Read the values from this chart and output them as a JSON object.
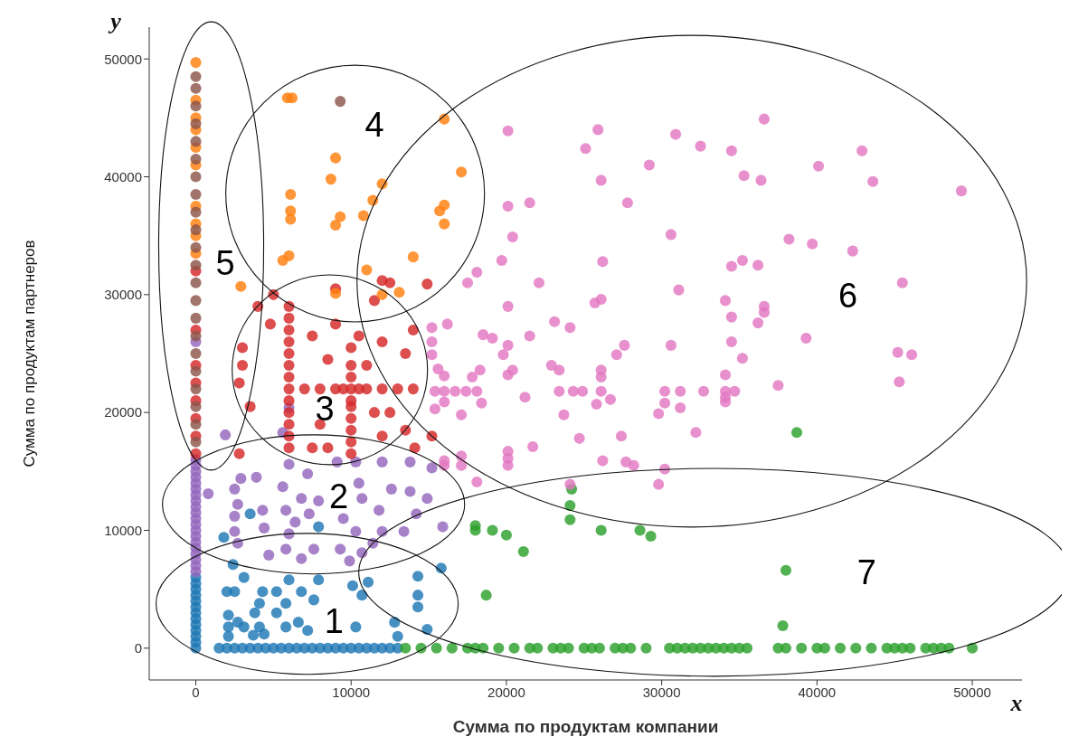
{
  "chart_data": {
    "type": "scatter",
    "xlabel": "Сумма по продуктам компании",
    "ylabel": "Сумма по продуктам партнеров",
    "xlim": [
      -3000,
      53200
    ],
    "ylim": [
      -2700,
      52700
    ],
    "xticks": [
      0,
      10000,
      20000,
      30000,
      40000,
      50000
    ],
    "yticks": [
      0,
      10000,
      20000,
      30000,
      40000,
      50000
    ],
    "marker": "circle",
    "annotations": [
      "y",
      "x",
      "1",
      "2",
      "3",
      "4",
      "5",
      "6",
      "7"
    ],
    "series": [
      {
        "color": "#1f77b4",
        "x": [
          0,
          0,
          0,
          0,
          0,
          0,
          0,
          0,
          0,
          0,
          0,
          0,
          0,
          1500,
          2000,
          2500,
          3000,
          3500,
          4000,
          4500,
          5000,
          5500,
          6000,
          6500,
          7000,
          7500,
          8000,
          8500,
          9000,
          9500,
          10000,
          10500,
          11000,
          11500,
          12000,
          12500,
          13000,
          3500,
          7900,
          1800,
          2400,
          3100,
          2000,
          2500,
          4300,
          5200,
          6000,
          6800,
          7900,
          7600,
          5800,
          5200,
          4100,
          3800,
          2100,
          2700,
          2100,
          3100,
          4100,
          5800,
          6600,
          7200,
          2100,
          3700,
          4400,
          10300,
          10100,
          11100,
          10700,
          14300,
          14300,
          14300,
          14900,
          13000,
          15800,
          12800
        ],
        "values": [
          0,
          500,
          1000,
          1500,
          2000,
          2500,
          3000,
          3500,
          4000,
          4500,
          5000,
          5500,
          6000,
          0,
          0,
          0,
          0,
          0,
          0,
          0,
          0,
          0,
          0,
          0,
          0,
          0,
          0,
          0,
          0,
          0,
          0,
          0,
          0,
          0,
          0,
          0,
          0,
          11400,
          10300,
          9400,
          7100,
          6000,
          4800,
          4800,
          4800,
          4800,
          5800,
          4800,
          5800,
          4100,
          3800,
          3000,
          3800,
          3000,
          2800,
          2200,
          1800,
          1800,
          1800,
          1800,
          2200,
          1500,
          1000,
          1100,
          1200,
          1800,
          5300,
          5600,
          4500,
          6100,
          4500,
          3500,
          1600,
          1000,
          6800,
          2200
        ]
      },
      {
        "color": "#2ca02c",
        "x": [
          13500,
          14500,
          15500,
          16500,
          17500,
          18000,
          18500,
          19500,
          20500,
          21500,
          22000,
          23000,
          23500,
          24000,
          25000,
          25500,
          26000,
          27000,
          27500,
          28000,
          29000,
          30500,
          31000,
          31500,
          32000,
          32500,
          33000,
          33500,
          34000,
          34500,
          35000,
          35500,
          37500,
          38000,
          39000,
          40000,
          40500,
          41500,
          42500,
          43500,
          44500,
          45000,
          45500,
          46000,
          47000,
          47500,
          48000,
          48500,
          50000,
          38700,
          24200,
          24100,
          24100,
          18000,
          18000,
          19100,
          20000,
          21100,
          26100,
          28600,
          29300,
          38000,
          18700,
          37800
        ],
        "values": [
          0,
          0,
          0,
          0,
          0,
          0,
          0,
          0,
          0,
          0,
          0,
          0,
          0,
          0,
          0,
          0,
          0,
          0,
          0,
          0,
          0,
          0,
          0,
          0,
          0,
          0,
          0,
          0,
          0,
          0,
          0,
          0,
          0,
          0,
          0,
          0,
          0,
          0,
          0,
          0,
          0,
          0,
          0,
          0,
          0,
          0,
          0,
          0,
          0,
          18300,
          13500,
          12100,
          10900,
          10400,
          10000,
          10000,
          9600,
          8200,
          10000,
          10000,
          9500,
          6600,
          4500,
          1900
        ]
      },
      {
        "color": "#9467bd",
        "x": [
          0,
          0,
          0,
          0,
          0,
          0,
          0,
          0,
          0,
          0,
          0,
          0,
          0,
          0,
          0,
          0,
          0,
          0,
          0,
          0,
          0,
          800,
          2900,
          3900,
          2500,
          2700,
          2500,
          2500,
          2700,
          4300,
          4400,
          6000,
          7200,
          5600,
          6800,
          5800,
          6400,
          6000,
          5800,
          6800,
          7600,
          7300,
          7900,
          9100,
          10300,
          10500,
          10700,
          9500,
          10300,
          9300,
          9900,
          12000,
          11800,
          12600,
          12000,
          11400,
          13800,
          13800,
          15200,
          14900,
          14200,
          15900,
          13400,
          10700,
          4700,
          1900,
          6000,
          5600
        ],
        "values": [
          6500,
          7000,
          7500,
          8000,
          8500,
          9000,
          9500,
          10000,
          10500,
          11000,
          11500,
          12000,
          12500,
          13000,
          13500,
          14000,
          14500,
          15000,
          15500,
          16000,
          26000,
          13100,
          14400,
          14500,
          13500,
          12200,
          11200,
          9900,
          8900,
          11700,
          10200,
          15600,
          14800,
          13700,
          12700,
          11700,
          10700,
          9700,
          8400,
          7600,
          8400,
          11400,
          12500,
          15800,
          15800,
          14000,
          12700,
          11000,
          9900,
          8400,
          7400,
          15800,
          11700,
          13500,
          9900,
          8900,
          13300,
          15800,
          15300,
          12700,
          11400,
          10300,
          9900,
          8100,
          7900,
          18100,
          20400,
          18300
        ]
      },
      {
        "color": "#e377c2",
        "x": [
          20100,
          25900,
          25100,
          30900,
          32500,
          34500,
          36600,
          29200,
          26100,
          35300,
          36400,
          42900,
          40100,
          43600,
          20100,
          21500,
          27800,
          20400,
          30600,
          19700,
          26200,
          38200,
          39700,
          42300,
          35200,
          34500,
          36200,
          18100,
          17500,
          22100,
          31100,
          45500,
          20100,
          26100,
          25700,
          34100,
          34500,
          36600,
          36600,
          36200,
          23100,
          24100,
          39300,
          15200,
          16200,
          15200,
          18500,
          19100,
          21500,
          20100,
          19800,
          27600,
          27100,
          30600,
          34500,
          35200,
          45200,
          15200,
          15600,
          16000,
          18300,
          17800,
          20400,
          20100,
          22900,
          23400,
          26100,
          26100,
          34100,
          37500,
          45300,
          15400,
          16000,
          16700,
          17400,
          18100,
          23400,
          24300,
          24900,
          26100,
          30200,
          31200,
          32700,
          34100,
          34700,
          21200,
          16000,
          18400,
          25800,
          26700,
          30200,
          31200,
          34100,
          15400,
          17100,
          23700,
          29800,
          34100,
          24700,
          27400,
          32200,
          21700,
          20100,
          20100,
          20100,
          16000,
          16000,
          17100,
          17100,
          26200,
          27700,
          28200,
          30200,
          18100,
          29800,
          24100,
          49300,
          46100
        ],
        "values": [
          43900,
          44000,
          42400,
          43600,
          42600,
          42200,
          44900,
          41000,
          39700,
          40100,
          39700,
          42200,
          40900,
          39600,
          37500,
          37800,
          37800,
          34900,
          35100,
          32900,
          32800,
          34700,
          34300,
          33700,
          32900,
          32400,
          32500,
          31900,
          31000,
          31000,
          30400,
          31000,
          29000,
          29600,
          29300,
          29500,
          28100,
          29000,
          28500,
          27600,
          27700,
          27200,
          26300,
          27200,
          27500,
          26000,
          26600,
          26300,
          26500,
          25700,
          24900,
          25700,
          24900,
          25700,
          26000,
          24600,
          25100,
          24900,
          23700,
          23100,
          23600,
          23000,
          23600,
          23200,
          24000,
          23600,
          23600,
          23000,
          23200,
          22300,
          22600,
          21800,
          21800,
          21800,
          21800,
          21800,
          21800,
          21800,
          21800,
          21800,
          21800,
          21800,
          21800,
          21800,
          21800,
          21300,
          20900,
          20800,
          20700,
          21100,
          20800,
          20400,
          20900,
          20300,
          19800,
          19800,
          19900,
          21300,
          17800,
          18000,
          18300,
          17100,
          16700,
          16100,
          15500,
          15900,
          15500,
          16300,
          15500,
          15900,
          15800,
          15500,
          15200,
          14100,
          13900,
          13900,
          38800,
          24900
        ]
      },
      {
        "color": "#d62728",
        "x": [
          0,
          0,
          0,
          0,
          0,
          0,
          0,
          0,
          6000,
          7000,
          8000,
          9000,
          9500,
          10000,
          10500,
          11000,
          12000,
          13000,
          14000,
          6000,
          6000,
          6000,
          6000,
          6000,
          6000,
          6000,
          6000,
          6000,
          6000,
          6000,
          6000,
          10000,
          10000,
          10000,
          10000,
          10000,
          10000,
          10000,
          10000,
          10000,
          3000,
          3000,
          2800,
          3500,
          2800,
          4800,
          4000,
          5000,
          7500,
          8500,
          8000,
          8500,
          7500,
          9000,
          11500,
          12500,
          12000,
          11000,
          12500,
          13500,
          13500,
          14000,
          12000,
          11500,
          9000,
          10500,
          15200,
          14100,
          14900,
          12000
        ],
        "values": [
          16500,
          18000,
          19500,
          21000,
          22500,
          24000,
          27000,
          32000,
          22000,
          22000,
          22000,
          22000,
          22000,
          22000,
          22000,
          22000,
          22000,
          22000,
          22000,
          17000,
          18000,
          19000,
          20000,
          21000,
          23000,
          24000,
          25000,
          26000,
          27000,
          28000,
          29000,
          16500,
          17500,
          18500,
          19500,
          20500,
          21000,
          23000,
          24000,
          25500,
          25500,
          24000,
          22500,
          20500,
          16500,
          27500,
          29000,
          30000,
          26500,
          24500,
          19000,
          17000,
          17000,
          30500,
          29500,
          31000,
          26000,
          24000,
          20000,
          18500,
          25000,
          27000,
          18000,
          20000,
          27500,
          26500,
          18000,
          17000,
          30900,
          31200
        ]
      },
      {
        "color": "#ff7f0e",
        "x": [
          0,
          0,
          0,
          0,
          0,
          0,
          0,
          0,
          0,
          0,
          5900,
          6200,
          16000,
          9000,
          8700,
          12000,
          17100,
          6100,
          11400,
          6100,
          6100,
          9300,
          10800,
          9000,
          16000,
          15700,
          16000,
          6000,
          5600,
          14000,
          2900,
          9000,
          11000,
          13100,
          12000
        ],
        "values": [
          33500,
          35000,
          36000,
          37500,
          41000,
          42500,
          44000,
          45000,
          46500,
          49700,
          46700,
          46700,
          44900,
          41600,
          39800,
          39400,
          40400,
          38500,
          38000,
          37100,
          36400,
          36600,
          36700,
          35900,
          37600,
          37100,
          36000,
          33300,
          32900,
          33200,
          30700,
          30100,
          32100,
          30200,
          30000
        ]
      },
      {
        "color": "#8c564b",
        "x": [
          0,
          0,
          0,
          0,
          0,
          0,
          0,
          0,
          0,
          0,
          0,
          0,
          0,
          0,
          0,
          0,
          0,
          0,
          0,
          0,
          0,
          0,
          9300
        ],
        "values": [
          17500,
          19000,
          20500,
          22000,
          23500,
          25000,
          26500,
          28000,
          29500,
          31000,
          32500,
          34000,
          35500,
          37000,
          38500,
          40000,
          41500,
          43000,
          44500,
          46000,
          47500,
          48500,
          46400
        ]
      }
    ]
  }
}
